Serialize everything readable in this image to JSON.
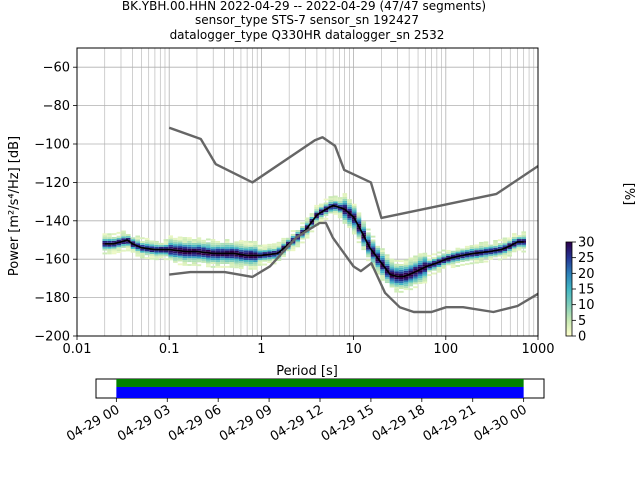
{
  "header": {
    "line1": "BK.YBH.00.HHN   2022-04-29 -- 2022-04-29  (47/47 segments)",
    "line2": "sensor_type STS-7 sensor_sn 192427",
    "line3": "datalogger_type Q330HR datalogger_sn 2532"
  },
  "colors": {
    "nlnm_nhnm": "#666666",
    "mean_line": "#000000",
    "grid": "#b0b0b0",
    "coverage_green": "#008000",
    "coverage_blue": "#0000ff"
  },
  "chart_data": [
    {
      "type": "heatmap",
      "title": "",
      "xlabel": "Period [s]",
      "ylabel": "Power [m²/s⁴/Hz] [dB]",
      "xscale": "log",
      "xlim": [
        0.01,
        1000
      ],
      "ylim": [
        -200,
        -50
      ],
      "x_ticks": [
        0.01,
        0.1,
        1,
        10,
        100,
        1000
      ],
      "x_tick_labels": [
        "0.01",
        "0.1",
        "1",
        "10",
        "100",
        "1000"
      ],
      "y_ticks": [
        -200,
        -180,
        -160,
        -140,
        -120,
        -100,
        -80,
        -60
      ],
      "y_tick_labels": [
        "−200",
        "−180",
        "−160",
        "−140",
        "−120",
        "−100",
        "−80",
        "−60"
      ],
      "grid": true,
      "colorbar": {
        "label": "[%]",
        "range": [
          0,
          30
        ],
        "ticks": [
          0,
          5,
          10,
          15,
          20,
          25,
          30
        ],
        "tick_labels": [
          "0",
          "5",
          "10",
          "15",
          "20",
          "25",
          "30"
        ],
        "colormap": [
          "#ffffcc",
          "#c7e9b4",
          "#7fcdbb",
          "#41b6c4",
          "#2c7fb8",
          "#253494",
          "#2d004b"
        ]
      },
      "series": [
        {
          "name": "",
          "role": "mean",
          "x": [
            0.02,
            0.025,
            0.03,
            0.035,
            0.04,
            0.05,
            0.07,
            0.1,
            0.15,
            0.2,
            0.3,
            0.5,
            0.7,
            1,
            1.5,
            2,
            3,
            4,
            5,
            6,
            7,
            8,
            10,
            12,
            15,
            20,
            25,
            30,
            35,
            40,
            50,
            60,
            80,
            100,
            150,
            200,
            300,
            400,
            500,
            600,
            700
          ],
          "y": [
            -152,
            -152,
            -151,
            -150,
            -152,
            -154,
            -155,
            -155,
            -156,
            -156,
            -157,
            -157,
            -158,
            -158,
            -157,
            -152,
            -145,
            -137,
            -134,
            -132,
            -133,
            -134,
            -138,
            -145,
            -154,
            -162,
            -168,
            -169,
            -169,
            -168,
            -166,
            -164,
            -162,
            -160,
            -158,
            -157,
            -156,
            -155,
            -153,
            -151,
            -151
          ]
        },
        {
          "name": "",
          "role": "nhnm",
          "x": [
            0.1,
            0.22,
            0.32,
            0.8,
            3.8,
            4.6,
            6.3,
            7.9,
            15.4,
            20,
            354.8,
            1000
          ],
          "y": [
            -91.5,
            -97.4,
            -110.5,
            -120,
            -98,
            -96.5,
            -101,
            -113.5,
            -120,
            -138.5,
            -126,
            -111.5
          ]
        },
        {
          "name": "",
          "role": "nlnm",
          "x": [
            0.1,
            0.17,
            0.4,
            0.8,
            1.24,
            2.4,
            4.3,
            5,
            6,
            10,
            12,
            15.6,
            21.9,
            31.6,
            45,
            70,
            101,
            154,
            328,
            600,
            1000
          ],
          "y": [
            -168,
            -166.7,
            -166.7,
            -169.2,
            -163.7,
            -148.6,
            -141.1,
            -141.1,
            -149,
            -163.8,
            -166.2,
            -162.1,
            -177.5,
            -185,
            -187.5,
            -187.5,
            -185,
            -185,
            -187.5,
            -184.4,
            -178
          ]
        }
      ]
    },
    {
      "type": "bar",
      "title": "",
      "xlabel": "",
      "ylabel": "",
      "categories": [
        "04-29 00",
        "04-29 03",
        "04-29 06",
        "04-29 09",
        "04-29 12",
        "04-29 15",
        "04-29 18",
        "04-29 21",
        "04-30 00"
      ],
      "x_range_hours": [
        -1.2,
        25.2
      ],
      "coverage_hours": [
        0,
        24
      ],
      "series": [
        {
          "name": "",
          "color": "#008000"
        },
        {
          "name": "",
          "color": "#0000ff"
        }
      ]
    }
  ]
}
